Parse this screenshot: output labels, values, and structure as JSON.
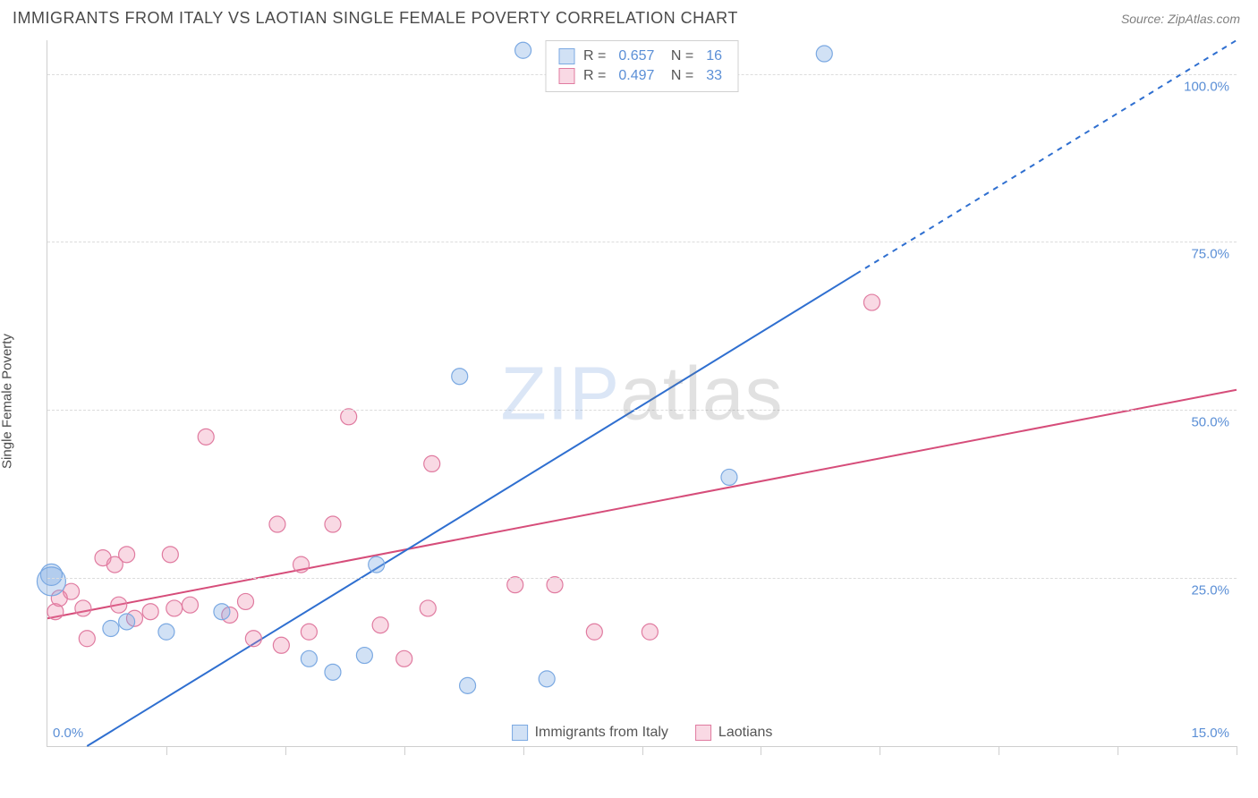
{
  "header": {
    "title": "IMMIGRANTS FROM ITALY VS LAOTIAN SINGLE FEMALE POVERTY CORRELATION CHART",
    "source_prefix": "Source: ",
    "source_name": "ZipAtlas.com"
  },
  "watermark": {
    "zip": "ZIP",
    "atlas": "atlas"
  },
  "chart": {
    "type": "scatter",
    "ylabel": "Single Female Poverty",
    "xlim": [
      0,
      15
    ],
    "ylim": [
      0,
      105
    ],
    "xaxis_label_min": "0.0%",
    "xaxis_label_max": "15.0%",
    "ytick_step": 25,
    "yticks": [
      {
        "v": 25,
        "label": "25.0%"
      },
      {
        "v": 50,
        "label": "50.0%"
      },
      {
        "v": 75,
        "label": "75.0%"
      },
      {
        "v": 100,
        "label": "100.0%"
      }
    ],
    "xtick_positions": [
      0,
      1.5,
      3.0,
      4.5,
      6.0,
      7.5,
      9.0,
      10.5,
      12.0,
      13.5,
      15.0
    ],
    "background_color": "#ffffff",
    "grid_color": "#dcdcdc",
    "axis_color": "#cfcfcf",
    "label_color": "#5b8fd6",
    "series": {
      "italy": {
        "legend_label": "Immigrants from Italy",
        "fill": "rgba(123, 169, 226, 0.35)",
        "stroke": "#7ba9e2",
        "marker_r": 9,
        "R": "0.657",
        "N": "16",
        "trend": {
          "x1": 0.5,
          "y1": 0,
          "x2": 15,
          "y2": 105,
          "solid_to_x": 10.2,
          "color": "#2f6fd0",
          "width": 2
        },
        "points": [
          {
            "x": 0.05,
            "y": 24.5,
            "r": 16
          },
          {
            "x": 0.05,
            "y": 25.5,
            "r": 12
          },
          {
            "x": 0.8,
            "y": 17.5
          },
          {
            "x": 1.0,
            "y": 18.5
          },
          {
            "x": 1.5,
            "y": 17.0
          },
          {
            "x": 2.2,
            "y": 20.0
          },
          {
            "x": 3.3,
            "y": 13.0
          },
          {
            "x": 3.6,
            "y": 11.0
          },
          {
            "x": 4.0,
            "y": 13.5
          },
          {
            "x": 4.15,
            "y": 27.0
          },
          {
            "x": 5.3,
            "y": 9.0
          },
          {
            "x": 5.2,
            "y": 55.0
          },
          {
            "x": 6.3,
            "y": 10.0
          },
          {
            "x": 6.0,
            "y": 103.5
          },
          {
            "x": 8.6,
            "y": 40.0
          },
          {
            "x": 9.8,
            "y": 103.0
          }
        ]
      },
      "laotian": {
        "legend_label": "Laotians",
        "fill": "rgba(236, 130, 164, 0.30)",
        "stroke": "#e07ba0",
        "marker_r": 9,
        "R": "0.497",
        "N": "33",
        "trend": {
          "x1": 0,
          "y1": 19,
          "x2": 15,
          "y2": 53,
          "color": "#d64d7a",
          "width": 2
        },
        "points": [
          {
            "x": 0.1,
            "y": 20.0
          },
          {
            "x": 0.15,
            "y": 22.0
          },
          {
            "x": 0.3,
            "y": 23.0
          },
          {
            "x": 0.45,
            "y": 20.5
          },
          {
            "x": 0.5,
            "y": 16.0
          },
          {
            "x": 0.7,
            "y": 28.0
          },
          {
            "x": 0.9,
            "y": 21.0
          },
          {
            "x": 0.85,
            "y": 27.0
          },
          {
            "x": 1.0,
            "y": 28.5
          },
          {
            "x": 1.1,
            "y": 19.0
          },
          {
            "x": 1.3,
            "y": 20.0
          },
          {
            "x": 1.55,
            "y": 28.5
          },
          {
            "x": 1.6,
            "y": 20.5
          },
          {
            "x": 1.8,
            "y": 21.0
          },
          {
            "x": 2.0,
            "y": 46.0
          },
          {
            "x": 2.3,
            "y": 19.5
          },
          {
            "x": 2.5,
            "y": 21.5
          },
          {
            "x": 2.6,
            "y": 16.0
          },
          {
            "x": 2.9,
            "y": 33.0
          },
          {
            "x": 2.95,
            "y": 15.0
          },
          {
            "x": 3.2,
            "y": 27.0
          },
          {
            "x": 3.3,
            "y": 17.0
          },
          {
            "x": 3.6,
            "y": 33.0
          },
          {
            "x": 3.8,
            "y": 49.0
          },
          {
            "x": 4.2,
            "y": 18.0
          },
          {
            "x": 4.5,
            "y": 13.0
          },
          {
            "x": 4.8,
            "y": 20.5
          },
          {
            "x": 4.85,
            "y": 42.0
          },
          {
            "x": 5.9,
            "y": 24.0
          },
          {
            "x": 6.4,
            "y": 24.0
          },
          {
            "x": 6.9,
            "y": 17.0
          },
          {
            "x": 7.6,
            "y": 17.0
          },
          {
            "x": 10.4,
            "y": 66.0
          }
        ]
      }
    }
  }
}
